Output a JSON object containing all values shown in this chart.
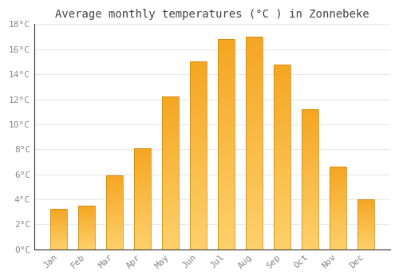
{
  "title": "Average monthly temperatures (°C ) in Zonnebeke",
  "months": [
    "Jan",
    "Feb",
    "Mar",
    "Apr",
    "May",
    "Jun",
    "Jul",
    "Aug",
    "Sep",
    "Oct",
    "Nov",
    "Dec"
  ],
  "values": [
    3.2,
    3.5,
    5.9,
    8.1,
    12.2,
    15.0,
    16.8,
    17.0,
    14.8,
    11.2,
    6.6,
    4.0
  ],
  "bar_color_top": "#F5A623",
  "bar_color_bottom": "#FDD06A",
  "bar_edge_color": "#C8820A",
  "bar_edge_width": 0.5,
  "ylim": [
    0,
    18
  ],
  "yticks": [
    0,
    2,
    4,
    6,
    8,
    10,
    12,
    14,
    16,
    18
  ],
  "ytick_labels": [
    "0°C",
    "2°C",
    "4°C",
    "6°C",
    "8°C",
    "10°C",
    "12°C",
    "14°C",
    "16°C",
    "18°C"
  ],
  "title_fontsize": 10,
  "tick_fontsize": 8,
  "background_color": "#FFFFFF",
  "plot_bg_color": "#FFFFFF",
  "grid_color": "#E8E8E8",
  "tick_color": "#888888",
  "title_color": "#444444",
  "bar_width": 0.6,
  "gradient_steps": 50
}
